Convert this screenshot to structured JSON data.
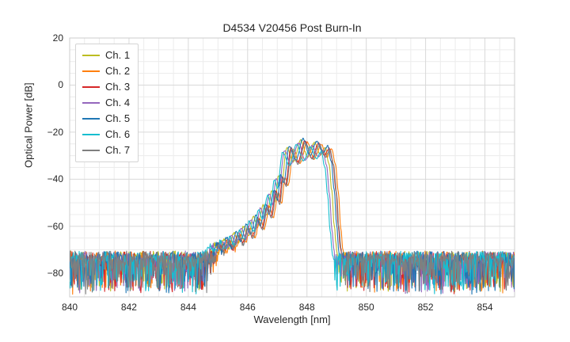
{
  "chart_data": {
    "type": "line",
    "title": "D4534 V20456 Post Burn-In",
    "xlabel": "Wavelength [nm]",
    "ylabel": "Optical Power [dB]",
    "xlim": [
      840,
      855
    ],
    "ylim": [
      -90,
      20
    ],
    "xticks": [
      840,
      842,
      844,
      846,
      848,
      850,
      852,
      854
    ],
    "yticks": [
      20,
      0,
      -20,
      -40,
      -60,
      -80
    ],
    "x_minor_step": 0.5,
    "y_minor_step": 5,
    "grid": true,
    "legend_position": "upper-left",
    "style": {
      "grid_major": "#d9d9d9",
      "grid_minor": "#ececec",
      "frame": "#cccccc",
      "background": "#ffffff"
    },
    "series": [
      {
        "name": "Ch. 1",
        "color": "#bcbd22",
        "offset_nm": -0.06,
        "gain_db": 0.0
      },
      {
        "name": "Ch. 2",
        "color": "#ff7f0e",
        "offset_nm": 0.16,
        "gain_db": -0.8
      },
      {
        "name": "Ch. 3",
        "color": "#d62728",
        "offset_nm": 0.08,
        "gain_db": -0.3
      },
      {
        "name": "Ch. 4",
        "color": "#9467bd",
        "offset_nm": -0.14,
        "gain_db": -1.2
      },
      {
        "name": "Ch. 5",
        "color": "#1f77b4",
        "offset_nm": 0.02,
        "gain_db": 0.6
      },
      {
        "name": "Ch. 6",
        "color": "#17becf",
        "offset_nm": -0.2,
        "gain_db": -1.8
      },
      {
        "name": "Ch. 7",
        "color": "#7f7f7f",
        "offset_nm": 0.1,
        "gain_db": -1.0
      }
    ],
    "envelope_points": [
      [
        840.0,
        -95
      ],
      [
        844.5,
        -95
      ],
      [
        844.75,
        -78
      ],
      [
        844.95,
        -68.5
      ],
      [
        845.08,
        -72.5
      ],
      [
        845.28,
        -66
      ],
      [
        845.42,
        -70.5
      ],
      [
        845.6,
        -63
      ],
      [
        845.75,
        -67.5
      ],
      [
        845.93,
        -60
      ],
      [
        846.08,
        -64.5
      ],
      [
        846.26,
        -56
      ],
      [
        846.4,
        -60.5
      ],
      [
        846.58,
        -51
      ],
      [
        846.7,
        -55.5
      ],
      [
        846.88,
        -45
      ],
      [
        846.98,
        -49.5
      ],
      [
        847.1,
        -38.5
      ],
      [
        847.2,
        -42
      ],
      [
        847.38,
        -26.5
      ],
      [
        847.6,
        -32.5
      ],
      [
        847.85,
        -23.5
      ],
      [
        848.08,
        -30.5
      ],
      [
        848.32,
        -24.5
      ],
      [
        848.52,
        -29.5
      ],
      [
        848.68,
        -26.5
      ],
      [
        848.8,
        -33
      ],
      [
        848.9,
        -45
      ],
      [
        848.98,
        -60
      ],
      [
        849.06,
        -72
      ],
      [
        849.12,
        -85
      ],
      [
        849.2,
        -95
      ],
      [
        855.0,
        -95
      ]
    ],
    "noise": {
      "seed": 11,
      "floor_top_db": -70.5,
      "spike_depth_db": 16,
      "jitter_db": 4,
      "signal_jitter_db": 0.8
    },
    "noise_floor_mean_db": -76,
    "sample_step_nm": 0.02
  }
}
